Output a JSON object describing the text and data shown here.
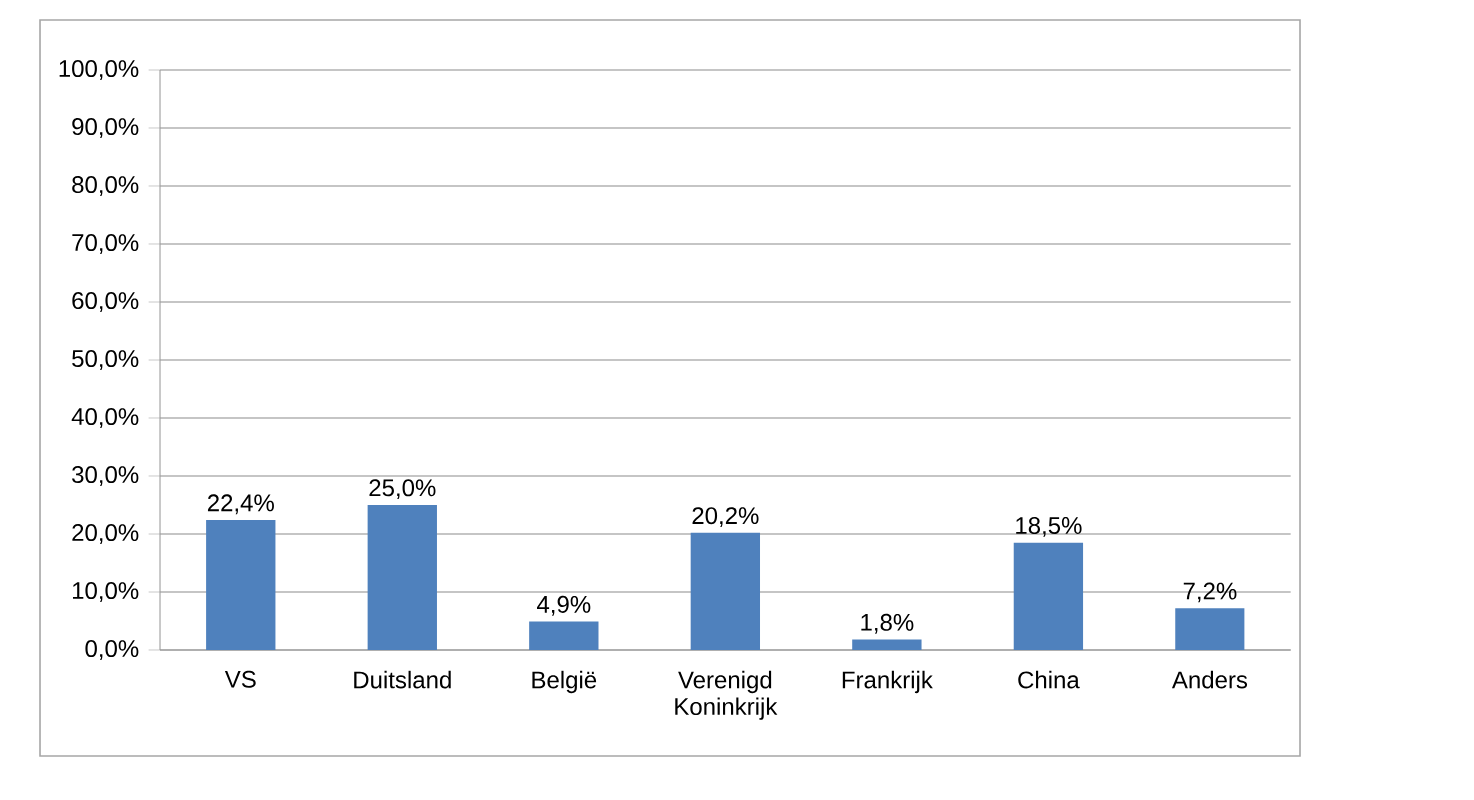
{
  "chart_data": {
    "type": "bar",
    "categories": [
      "VS",
      "Duitsland",
      "België",
      "Verenigd Koninkrijk",
      "Frankrijk",
      "China",
      "Anders"
    ],
    "values": [
      22.4,
      25.0,
      4.9,
      20.2,
      1.8,
      18.5,
      7.2
    ],
    "value_labels": [
      "22,4%",
      "25,0%",
      "4,9%",
      "20,2%",
      "1,8%",
      "18,5%",
      "7,2%"
    ],
    "color": "#4f81bd",
    "ylim": [
      0,
      100
    ],
    "yticks": [
      {
        "value": 0,
        "label": "0,0%"
      },
      {
        "value": 10,
        "label": "10,0%"
      },
      {
        "value": 20,
        "label": "20,0%"
      },
      {
        "value": 30,
        "label": "30,0%"
      },
      {
        "value": 40,
        "label": "40,0%"
      },
      {
        "value": 50,
        "label": "50,0%"
      },
      {
        "value": 60,
        "label": "60,0%"
      },
      {
        "value": 70,
        "label": "70,0%"
      },
      {
        "value": 80,
        "label": "80,0%"
      },
      {
        "value": 90,
        "label": "90,0%"
      },
      {
        "value": 100,
        "label": "100,0%"
      }
    ],
    "grid": "y"
  }
}
